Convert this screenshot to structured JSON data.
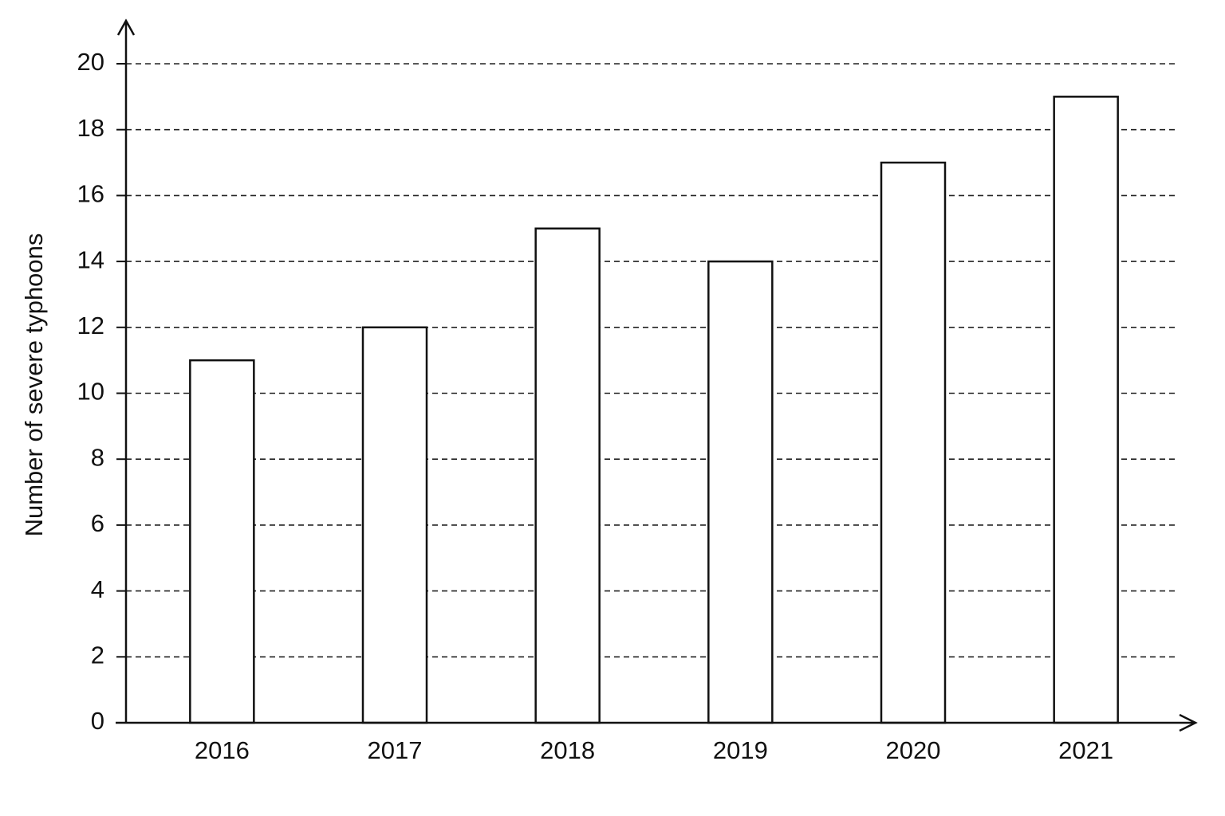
{
  "chart_data": {
    "type": "bar",
    "y_label": "Number of severe typhoons",
    "categories": [
      "2016",
      "2017",
      "2018",
      "2019",
      "2020",
      "2021"
    ],
    "values": [
      11,
      12,
      15,
      14,
      17,
      19
    ],
    "color": "#ffffff",
    "ylim": [
      0,
      20
    ],
    "yticks": [
      0,
      2,
      4,
      6,
      8,
      10,
      12,
      14,
      16,
      18,
      20
    ],
    "grid": true
  }
}
